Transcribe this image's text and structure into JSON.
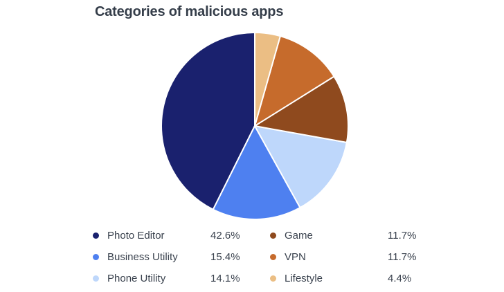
{
  "page": {
    "background": "#FFFFFF",
    "text_color": "#3A424E",
    "title_color": "#343D49"
  },
  "chart": {
    "title": "Categories of malicious apps"
  },
  "chart_data": {
    "type": "pie",
    "title": "Categories of malicious apps",
    "slices": [
      {
        "label": "Photo Editor",
        "value": 42.6,
        "display": "42.6%",
        "color": "#1A216E"
      },
      {
        "label": "Business Utility",
        "value": 15.4,
        "display": "15.4%",
        "color": "#4E80F0"
      },
      {
        "label": "Phone Utility",
        "value": 14.1,
        "display": "14.1%",
        "color": "#BED7FB"
      },
      {
        "label": "Game",
        "value": 11.7,
        "display": "11.7%",
        "color": "#8F4A1E"
      },
      {
        "label": "VPN",
        "value": 11.7,
        "display": "11.7%",
        "color": "#C66B2C"
      },
      {
        "label": "Lifestyle",
        "value": 4.4,
        "display": "4.4%",
        "color": "#EBBE84"
      }
    ],
    "start_angle_deg": 90,
    "winding": "counterclockwise from top in slice order (clockwise from top reads: Lifestyle, VPN, Game, Phone Utility, Business Utility, Photo Editor)",
    "slice_stroke": "#FFFFFF",
    "legend_position": "bottom, two columns of three rows"
  }
}
